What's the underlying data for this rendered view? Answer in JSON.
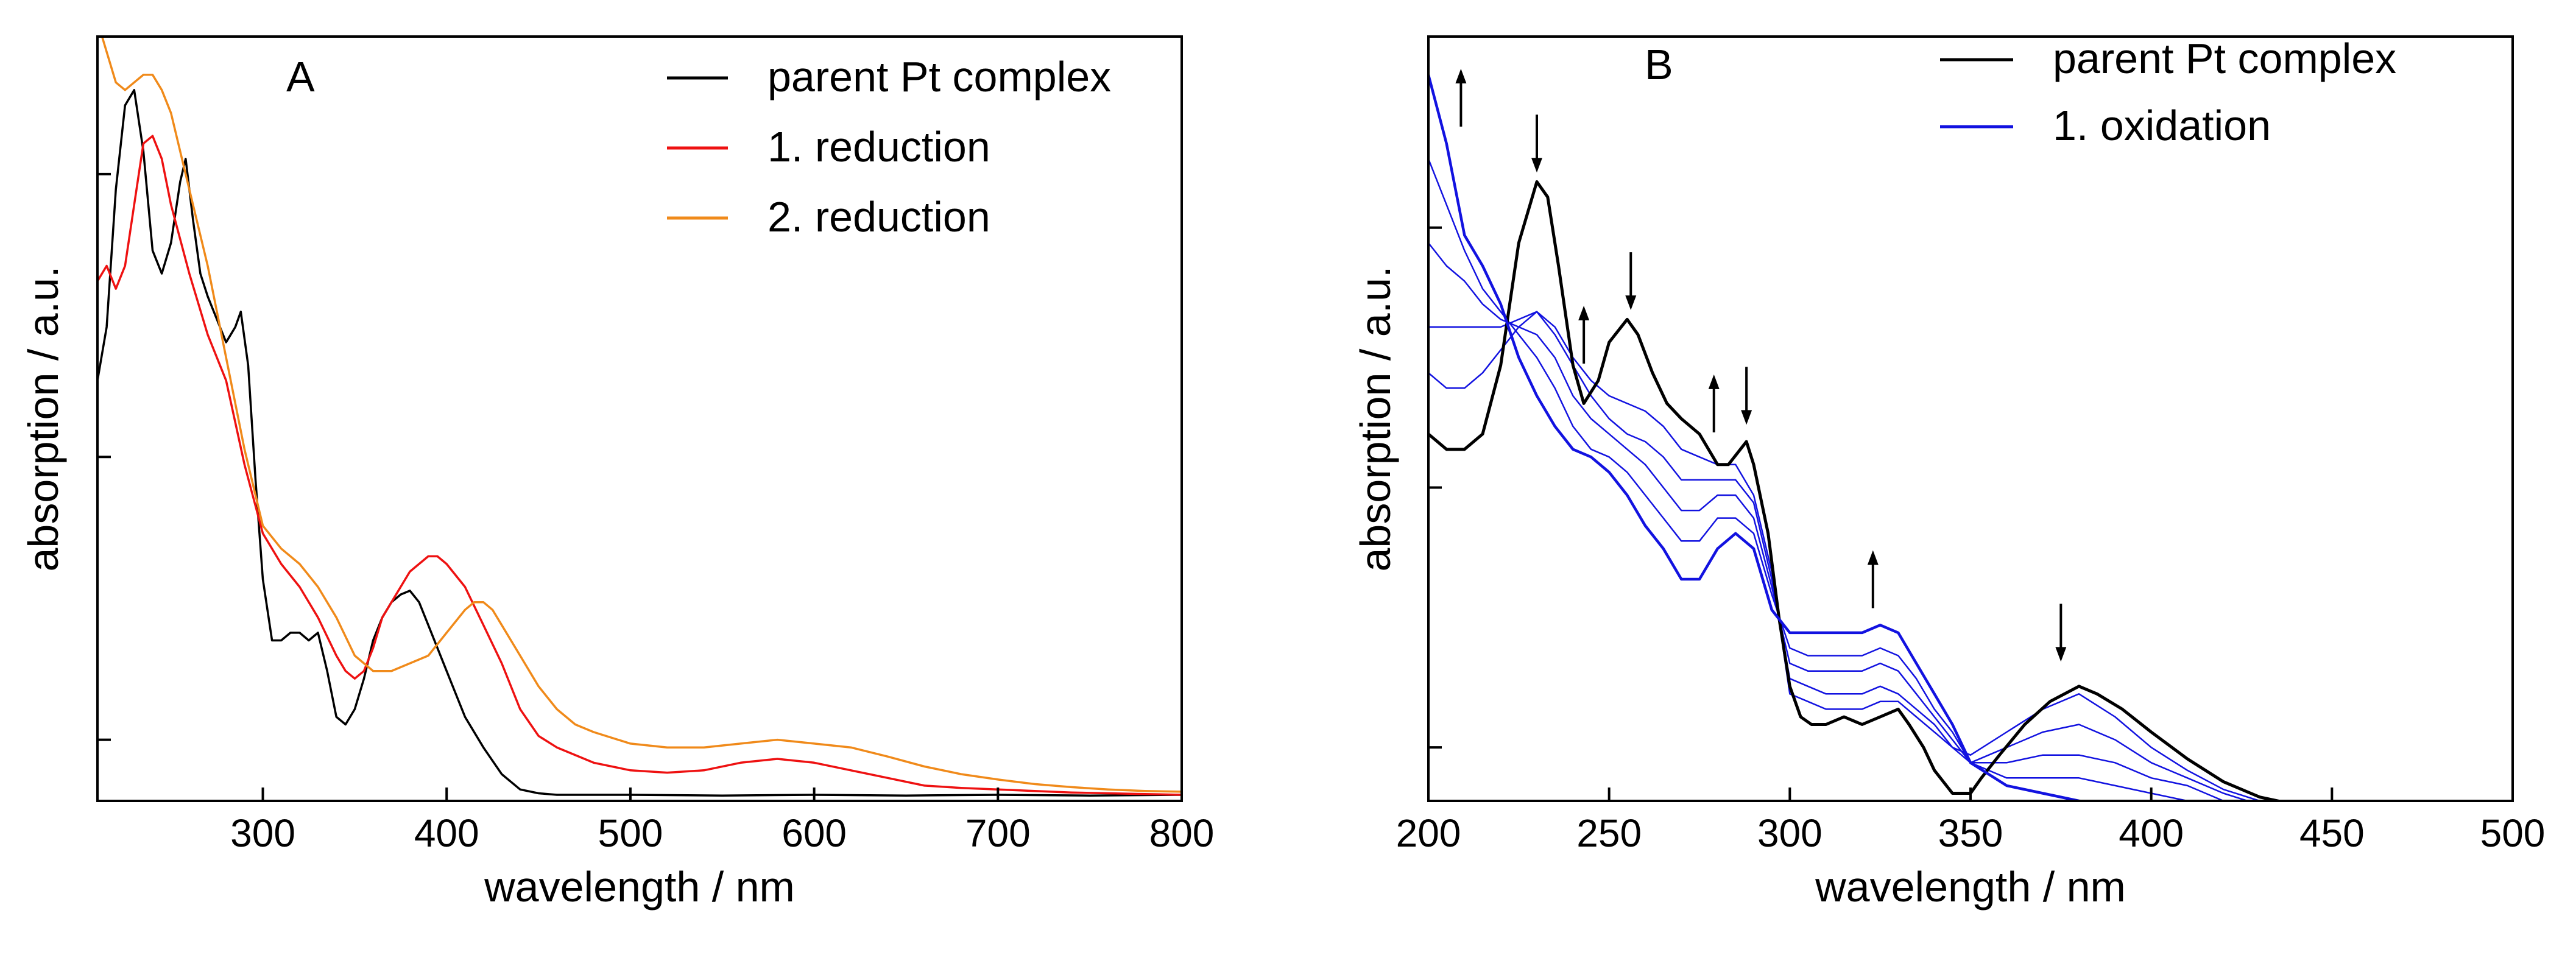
{
  "chart_data": [
    {
      "type": "line",
      "panel_label": "A",
      "xlabel": "wavelength / nm",
      "ylabel": "absorption / a.u.",
      "xlim": [
        210,
        800
      ],
      "ylim": [
        0,
        1
      ],
      "xticks": [
        300,
        400,
        500,
        600,
        700,
        800
      ],
      "yticks": [
        0.08,
        0.45,
        0.82
      ],
      "legend_position": "top-right",
      "series": [
        {
          "name": "parent Pt complex",
          "color": "#000000",
          "width": 3.5,
          "x": [
            210,
            215,
            220,
            225,
            230,
            235,
            240,
            245,
            250,
            255,
            258,
            262,
            266,
            270,
            275,
            280,
            285,
            288,
            292,
            296,
            300,
            305,
            310,
            315,
            320,
            325,
            330,
            335,
            340,
            345,
            350,
            355,
            360,
            365,
            370,
            375,
            380,
            385,
            390,
            400,
            410,
            420,
            430,
            440,
            450,
            460,
            480,
            500,
            550,
            600,
            650,
            700,
            750,
            800
          ],
          "y": [
            0.55,
            0.62,
            0.8,
            0.91,
            0.93,
            0.85,
            0.72,
            0.69,
            0.73,
            0.81,
            0.84,
            0.76,
            0.69,
            0.66,
            0.63,
            0.6,
            0.62,
            0.64,
            0.57,
            0.42,
            0.29,
            0.21,
            0.21,
            0.22,
            0.22,
            0.21,
            0.22,
            0.17,
            0.11,
            0.1,
            0.12,
            0.16,
            0.21,
            0.24,
            0.26,
            0.27,
            0.275,
            0.26,
            0.23,
            0.17,
            0.11,
            0.07,
            0.035,
            0.015,
            0.01,
            0.008,
            0.008,
            0.008,
            0.007,
            0.008,
            0.007,
            0.008,
            0.007,
            0.008
          ]
        },
        {
          "name": "1. reduction",
          "color": "#ee1111",
          "width": 3.5,
          "x": [
            210,
            215,
            220,
            225,
            230,
            235,
            240,
            245,
            250,
            260,
            270,
            280,
            290,
            300,
            310,
            320,
            330,
            340,
            345,
            350,
            355,
            360,
            365,
            370,
            380,
            390,
            395,
            400,
            410,
            420,
            430,
            440,
            450,
            460,
            480,
            500,
            520,
            540,
            560,
            580,
            600,
            620,
            640,
            660,
            680,
            700,
            720,
            740,
            760,
            780,
            800
          ],
          "y": [
            0.68,
            0.7,
            0.67,
            0.7,
            0.78,
            0.86,
            0.87,
            0.84,
            0.78,
            0.69,
            0.61,
            0.55,
            0.44,
            0.35,
            0.31,
            0.28,
            0.24,
            0.19,
            0.17,
            0.16,
            0.17,
            0.2,
            0.24,
            0.26,
            0.3,
            0.32,
            0.32,
            0.31,
            0.28,
            0.23,
            0.18,
            0.12,
            0.085,
            0.07,
            0.05,
            0.04,
            0.037,
            0.04,
            0.05,
            0.055,
            0.05,
            0.04,
            0.03,
            0.02,
            0.017,
            0.015,
            0.013,
            0.011,
            0.01,
            0.009,
            0.008
          ]
        },
        {
          "name": "2. reduction",
          "color": "#f08a1a",
          "width": 3.5,
          "x": [
            210,
            215,
            220,
            225,
            230,
            235,
            240,
            245,
            250,
            260,
            270,
            280,
            290,
            300,
            310,
            320,
            330,
            340,
            350,
            360,
            370,
            380,
            390,
            400,
            410,
            415,
            420,
            425,
            430,
            440,
            450,
            460,
            470,
            480,
            500,
            520,
            540,
            560,
            580,
            600,
            620,
            640,
            660,
            680,
            700,
            720,
            740,
            760,
            780,
            800
          ],
          "y": [
            1.02,
            0.98,
            0.94,
            0.93,
            0.94,
            0.95,
            0.95,
            0.93,
            0.9,
            0.8,
            0.7,
            0.58,
            0.46,
            0.36,
            0.33,
            0.31,
            0.28,
            0.24,
            0.19,
            0.17,
            0.17,
            0.18,
            0.19,
            0.22,
            0.25,
            0.26,
            0.26,
            0.25,
            0.23,
            0.19,
            0.15,
            0.12,
            0.1,
            0.09,
            0.075,
            0.07,
            0.07,
            0.075,
            0.08,
            0.075,
            0.07,
            0.058,
            0.045,
            0.035,
            0.028,
            0.022,
            0.018,
            0.015,
            0.013,
            0.012
          ]
        }
      ]
    },
    {
      "type": "line",
      "panel_label": "B",
      "xlabel": "wavelength / nm",
      "ylabel": "absorption / a.u.",
      "xlim": [
        200,
        500
      ],
      "ylim": [
        0,
        1
      ],
      "xticks": [
        200,
        250,
        300,
        350,
        400,
        450,
        500
      ],
      "yticks": [
        0.07,
        0.41,
        0.75
      ],
      "legend_position": "top-right",
      "series": [
        {
          "name": "parent Pt complex",
          "color": "#000000",
          "width": 5,
          "x": [
            200,
            205,
            210,
            215,
            220,
            225,
            230,
            233,
            236,
            240,
            243,
            247,
            250,
            255,
            258,
            262,
            266,
            270,
            275,
            280,
            283,
            288,
            290,
            294,
            297,
            300,
            303,
            306,
            310,
            315,
            320,
            325,
            330,
            333,
            337,
            340,
            345,
            350,
            353,
            358,
            365,
            372,
            380,
            385,
            392,
            400,
            410,
            420,
            430,
            440,
            450,
            460,
            470,
            480,
            490,
            500
          ],
          "y": [
            0.48,
            0.46,
            0.46,
            0.48,
            0.57,
            0.73,
            0.81,
            0.79,
            0.7,
            0.57,
            0.52,
            0.55,
            0.6,
            0.63,
            0.61,
            0.56,
            0.52,
            0.5,
            0.48,
            0.44,
            0.44,
            0.47,
            0.44,
            0.35,
            0.24,
            0.15,
            0.11,
            0.1,
            0.1,
            0.11,
            0.1,
            0.11,
            0.12,
            0.1,
            0.07,
            0.04,
            0.01,
            0.01,
            0.03,
            0.06,
            0.1,
            0.13,
            0.15,
            0.14,
            0.12,
            0.09,
            0.055,
            0.025,
            0.005,
            -0.005,
            -0.005,
            -0.005,
            -0.005,
            -0.005,
            -0.005,
            -0.005
          ]
        },
        {
          "name": "1. oxidation",
          "color": "#1212e0",
          "width": 4.5,
          "x": [
            200,
            205,
            210,
            215,
            220,
            225,
            230,
            235,
            240,
            245,
            250,
            255,
            260,
            265,
            270,
            275,
            280,
            285,
            290,
            295,
            300,
            305,
            310,
            315,
            320,
            325,
            330,
            335,
            340,
            345,
            350,
            360,
            370,
            380,
            390,
            400,
            410,
            420,
            430,
            440,
            450,
            460,
            470,
            480,
            490,
            500
          ],
          "y": [
            0.95,
            0.86,
            0.74,
            0.7,
            0.65,
            0.58,
            0.53,
            0.49,
            0.46,
            0.45,
            0.43,
            0.4,
            0.36,
            0.33,
            0.29,
            0.29,
            0.33,
            0.35,
            0.33,
            0.25,
            0.22,
            0.22,
            0.22,
            0.22,
            0.22,
            0.23,
            0.22,
            0.18,
            0.14,
            0.1,
            0.05,
            0.02,
            0.01,
            0.0,
            -0.005,
            -0.01,
            -0.01,
            -0.01,
            -0.01,
            -0.01,
            -0.01,
            -0.01,
            -0.01,
            -0.01,
            -0.01,
            -0.01
          ]
        }
      ],
      "intermediate_series": [
        {
          "color": "#1212e0",
          "width": 2.5,
          "x": [
            200,
            205,
            210,
            215,
            220,
            225,
            230,
            235,
            240,
            245,
            250,
            255,
            260,
            265,
            270,
            275,
            280,
            285,
            290,
            295,
            300,
            305,
            310,
            315,
            320,
            325,
            330,
            335,
            340,
            345,
            350,
            360,
            370,
            380,
            390,
            400,
            410,
            420,
            430,
            440,
            450,
            460,
            470,
            480,
            490,
            500
          ],
          "y": [
            0.84,
            0.78,
            0.72,
            0.67,
            0.64,
            0.61,
            0.58,
            0.54,
            0.49,
            0.46,
            0.45,
            0.43,
            0.4,
            0.37,
            0.34,
            0.34,
            0.37,
            0.37,
            0.35,
            0.27,
            0.2,
            0.19,
            0.19,
            0.19,
            0.19,
            0.2,
            0.19,
            0.16,
            0.12,
            0.09,
            0.05,
            0.03,
            0.03,
            0.03,
            0.02,
            0.01,
            0.0,
            -0.005,
            -0.01,
            -0.01,
            -0.01,
            -0.01,
            -0.01,
            -0.01,
            -0.01,
            -0.01
          ]
        },
        {
          "color": "#1212e0",
          "width": 2.5,
          "x": [
            200,
            205,
            210,
            215,
            220,
            225,
            230,
            235,
            240,
            245,
            250,
            255,
            260,
            265,
            270,
            275,
            280,
            285,
            290,
            295,
            300,
            305,
            310,
            315,
            320,
            325,
            330,
            335,
            340,
            345,
            350,
            360,
            370,
            380,
            390,
            400,
            410,
            420,
            430,
            440,
            450,
            460,
            470,
            480,
            490,
            500
          ],
          "y": [
            0.73,
            0.7,
            0.68,
            0.65,
            0.63,
            0.62,
            0.61,
            0.58,
            0.53,
            0.5,
            0.48,
            0.46,
            0.44,
            0.41,
            0.38,
            0.38,
            0.4,
            0.4,
            0.37,
            0.28,
            0.18,
            0.17,
            0.17,
            0.17,
            0.17,
            0.18,
            0.17,
            0.14,
            0.11,
            0.08,
            0.05,
            0.05,
            0.06,
            0.06,
            0.05,
            0.03,
            0.02,
            0.0,
            -0.01,
            -0.01,
            -0.01,
            -0.01,
            -0.01,
            -0.01,
            -0.01,
            -0.01
          ]
        },
        {
          "color": "#1212e0",
          "width": 2.5,
          "x": [
            200,
            205,
            210,
            215,
            220,
            225,
            230,
            235,
            240,
            245,
            250,
            255,
            260,
            265,
            270,
            275,
            280,
            285,
            290,
            295,
            300,
            305,
            310,
            315,
            320,
            325,
            330,
            335,
            340,
            345,
            350,
            360,
            370,
            380,
            390,
            400,
            410,
            420,
            430,
            440,
            450,
            460,
            470,
            480,
            490,
            500
          ],
          "y": [
            0.62,
            0.62,
            0.62,
            0.62,
            0.62,
            0.63,
            0.64,
            0.61,
            0.57,
            0.53,
            0.5,
            0.48,
            0.47,
            0.45,
            0.42,
            0.42,
            0.42,
            0.42,
            0.39,
            0.29,
            0.16,
            0.15,
            0.14,
            0.14,
            0.14,
            0.15,
            0.14,
            0.12,
            0.1,
            0.07,
            0.05,
            0.07,
            0.09,
            0.1,
            0.08,
            0.05,
            0.03,
            0.01,
            -0.005,
            -0.01,
            -0.01,
            -0.01,
            -0.01,
            -0.01,
            -0.01,
            -0.01
          ]
        },
        {
          "color": "#1212e0",
          "width": 2.5,
          "x": [
            200,
            205,
            210,
            215,
            220,
            225,
            230,
            235,
            240,
            245,
            250,
            255,
            260,
            265,
            270,
            275,
            280,
            285,
            290,
            295,
            300,
            305,
            310,
            315,
            320,
            325,
            330,
            335,
            340,
            345,
            350,
            360,
            370,
            380,
            390,
            400,
            410,
            420,
            430,
            440,
            450,
            460,
            470,
            480,
            490,
            500
          ],
          "y": [
            0.56,
            0.54,
            0.54,
            0.56,
            0.59,
            0.62,
            0.64,
            0.62,
            0.58,
            0.55,
            0.53,
            0.52,
            0.51,
            0.49,
            0.46,
            0.45,
            0.44,
            0.44,
            0.4,
            0.3,
            0.14,
            0.13,
            0.12,
            0.12,
            0.12,
            0.13,
            0.13,
            0.11,
            0.09,
            0.07,
            0.06,
            0.09,
            0.12,
            0.14,
            0.11,
            0.07,
            0.04,
            0.015,
            0.0,
            -0.01,
            -0.01,
            -0.01,
            -0.01,
            -0.01,
            -0.01,
            -0.01
          ]
        }
      ],
      "arrows": [
        {
          "x": 209,
          "y": 0.92,
          "direction": "up"
        },
        {
          "x": 230,
          "y": 0.86,
          "direction": "down"
        },
        {
          "x": 243,
          "y": 0.61,
          "direction": "up"
        },
        {
          "x": 256,
          "y": 0.68,
          "direction": "down"
        },
        {
          "x": 279,
          "y": 0.52,
          "direction": "up"
        },
        {
          "x": 288,
          "y": 0.53,
          "direction": "down"
        },
        {
          "x": 323,
          "y": 0.29,
          "direction": "up"
        },
        {
          "x": 375,
          "y": 0.22,
          "direction": "down"
        }
      ]
    }
  ]
}
